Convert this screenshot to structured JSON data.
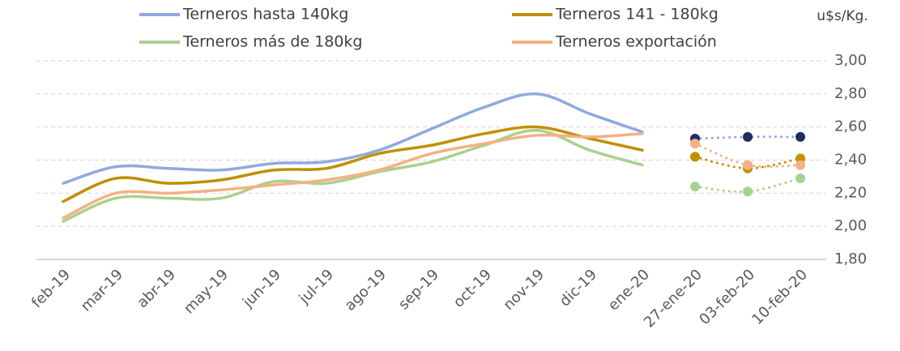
{
  "chart_data": {
    "type": "line",
    "y_label": "u$s/Kg.",
    "categories": [
      "feb-19",
      "mar-19",
      "abr-19",
      "may-19",
      "jun-19",
      "jul-19",
      "ago-19",
      "sep-19",
      "oct-19",
      "nov-19",
      "dic-19",
      "ene-20",
      "27-ene-20",
      "03-feb-20",
      "10-feb-20"
    ],
    "dotted_from": 12,
    "series": [
      {
        "name": "Terneros hasta 140kg",
        "color": "#8faadc",
        "point_color": "#1f2d5c",
        "values": [
          2.26,
          2.36,
          2.35,
          2.34,
          2.38,
          2.39,
          2.46,
          2.59,
          2.72,
          2.8,
          2.68,
          2.57,
          2.53,
          2.54,
          2.54
        ]
      },
      {
        "name": "Terneros 141 - 180kg",
        "color": "#bf9000",
        "point_color": "#bf9000",
        "values": [
          2.15,
          2.29,
          2.26,
          2.28,
          2.34,
          2.35,
          2.44,
          2.49,
          2.56,
          2.6,
          2.53,
          2.46,
          2.42,
          2.35,
          2.41
        ]
      },
      {
        "name": "Terneros más de 180kg",
        "color": "#a9d18e",
        "point_color": "#a9d18e",
        "values": [
          2.03,
          2.17,
          2.17,
          2.17,
          2.27,
          2.26,
          2.33,
          2.39,
          2.49,
          2.58,
          2.46,
          2.37,
          2.24,
          2.21,
          2.29
        ]
      },
      {
        "name": "Terneros exportación",
        "color": "#f4b183",
        "point_color": "#f4b183",
        "values": [
          2.05,
          2.2,
          2.2,
          2.22,
          2.25,
          2.28,
          2.34,
          2.44,
          2.5,
          2.55,
          2.54,
          2.56,
          2.5,
          2.37,
          2.37
        ]
      }
    ],
    "ylim": [
      1.8,
      3.0
    ],
    "yticks": [
      {
        "value": 1.8,
        "label": "1,80"
      },
      {
        "value": 2.0,
        "label": "2,00"
      },
      {
        "value": 2.2,
        "label": "2,20"
      },
      {
        "value": 2.4,
        "label": "2,40"
      },
      {
        "value": 2.6,
        "label": "2,60"
      },
      {
        "value": 2.8,
        "label": "2,80"
      },
      {
        "value": 3.0,
        "label": "3,00"
      }
    ],
    "grid": true,
    "y_axis_side": "right"
  }
}
